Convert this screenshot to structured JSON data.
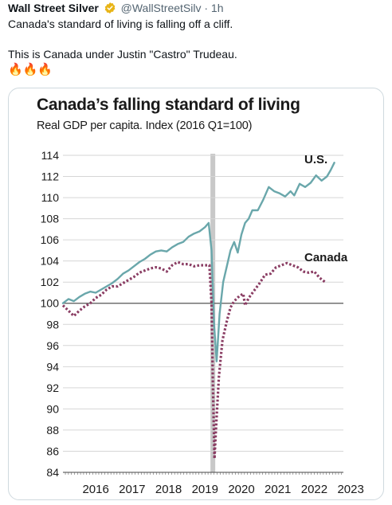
{
  "tweet": {
    "author": "Wall Street Silver",
    "handle": "@WallStreetSilv",
    "separator": "·",
    "time": "1h",
    "line1": "Canada's standard of living is falling off a cliff.",
    "line2": "This is Canada under Justin \"Castro\" Trudeau.",
    "emojis": "🔥🔥🔥"
  },
  "chart_data": {
    "type": "line",
    "title": "Canada’s falling standard of living",
    "subtitle": "Real GDP per capita. Index (2016 Q1=100)",
    "ylim": [
      84,
      114
    ],
    "yticks": [
      "114",
      "112",
      "110",
      "108",
      "106",
      "104",
      "102",
      "100",
      "98",
      "96",
      "94",
      "92",
      "90",
      "88",
      "86",
      "84"
    ],
    "xlim": [
      2015.6,
      2023.3
    ],
    "xticks": [
      "2016",
      "2017",
      "2018",
      "2019",
      "2020",
      "2021",
      "2022",
      "2023"
    ],
    "baseline": 100,
    "shaded_period": [
      2019.65,
      2019.75
    ],
    "colors": {
      "us": "#6aa7ab",
      "canada": "#8a3d63",
      "shade": "#c8c8c8",
      "grid": "#d6d6d6",
      "baseline": "#555555"
    },
    "series": [
      {
        "name": "U.S.",
        "style": "solid",
        "points": [
          [
            2015.6,
            100.0
          ],
          [
            2015.75,
            100.4
          ],
          [
            2015.9,
            100.2
          ],
          [
            2016.05,
            100.6
          ],
          [
            2016.2,
            100.9
          ],
          [
            2016.35,
            101.1
          ],
          [
            2016.5,
            101.0
          ],
          [
            2016.65,
            101.3
          ],
          [
            2016.8,
            101.6
          ],
          [
            2016.95,
            101.9
          ],
          [
            2017.1,
            102.3
          ],
          [
            2017.25,
            102.8
          ],
          [
            2017.4,
            103.1
          ],
          [
            2017.55,
            103.5
          ],
          [
            2017.7,
            103.9
          ],
          [
            2017.85,
            104.2
          ],
          [
            2018.0,
            104.6
          ],
          [
            2018.15,
            104.9
          ],
          [
            2018.3,
            105.0
          ],
          [
            2018.45,
            104.9
          ],
          [
            2018.6,
            105.3
          ],
          [
            2018.75,
            105.6
          ],
          [
            2018.9,
            105.8
          ],
          [
            2019.05,
            106.3
          ],
          [
            2019.2,
            106.6
          ],
          [
            2019.35,
            106.8
          ],
          [
            2019.5,
            107.2
          ],
          [
            2019.6,
            107.6
          ],
          [
            2019.68,
            105.0
          ],
          [
            2019.75,
            98.0
          ],
          [
            2019.82,
            94.5
          ],
          [
            2019.9,
            99.0
          ],
          [
            2020.0,
            102.0
          ],
          [
            2020.1,
            103.5
          ],
          [
            2020.2,
            105.0
          ],
          [
            2020.3,
            105.8
          ],
          [
            2020.4,
            104.8
          ],
          [
            2020.5,
            106.5
          ],
          [
            2020.6,
            107.6
          ],
          [
            2020.7,
            108.0
          ],
          [
            2020.8,
            108.8
          ],
          [
            2020.95,
            108.8
          ],
          [
            2021.1,
            109.8
          ],
          [
            2021.25,
            111.0
          ],
          [
            2021.4,
            110.6
          ],
          [
            2021.55,
            110.4
          ],
          [
            2021.7,
            110.1
          ],
          [
            2021.85,
            110.6
          ],
          [
            2021.95,
            110.2
          ],
          [
            2022.1,
            111.3
          ],
          [
            2022.25,
            111.0
          ],
          [
            2022.4,
            111.4
          ],
          [
            2022.55,
            112.1
          ],
          [
            2022.7,
            111.6
          ],
          [
            2022.85,
            112.0
          ],
          [
            2022.95,
            112.6
          ],
          [
            2023.05,
            113.3
          ]
        ]
      },
      {
        "name": "Canada",
        "style": "dotted",
        "points": [
          [
            2015.6,
            99.8
          ],
          [
            2015.75,
            99.3
          ],
          [
            2015.9,
            98.8
          ],
          [
            2016.05,
            99.3
          ],
          [
            2016.2,
            99.7
          ],
          [
            2016.35,
            100.0
          ],
          [
            2016.5,
            100.5
          ],
          [
            2016.65,
            100.8
          ],
          [
            2016.8,
            101.3
          ],
          [
            2016.95,
            101.6
          ],
          [
            2017.1,
            101.6
          ],
          [
            2017.25,
            101.9
          ],
          [
            2017.4,
            102.2
          ],
          [
            2017.55,
            102.5
          ],
          [
            2017.7,
            102.9
          ],
          [
            2017.85,
            103.1
          ],
          [
            2018.0,
            103.3
          ],
          [
            2018.15,
            103.4
          ],
          [
            2018.3,
            103.3
          ],
          [
            2018.45,
            103.0
          ],
          [
            2018.6,
            103.6
          ],
          [
            2018.75,
            103.9
          ],
          [
            2018.9,
            103.7
          ],
          [
            2019.05,
            103.7
          ],
          [
            2019.2,
            103.5
          ],
          [
            2019.35,
            103.6
          ],
          [
            2019.5,
            103.6
          ],
          [
            2019.62,
            103.6
          ],
          [
            2019.68,
            100.0
          ],
          [
            2019.72,
            92.0
          ],
          [
            2019.76,
            85.3
          ],
          [
            2019.8,
            88.0
          ],
          [
            2019.88,
            93.0
          ],
          [
            2019.98,
            96.5
          ],
          [
            2020.1,
            98.3
          ],
          [
            2020.2,
            99.6
          ],
          [
            2020.3,
            100.2
          ],
          [
            2020.45,
            100.7
          ],
          [
            2020.55,
            100.9
          ],
          [
            2020.6,
            99.8
          ],
          [
            2020.7,
            100.5
          ],
          [
            2020.85,
            101.2
          ],
          [
            2021.0,
            101.9
          ],
          [
            2021.15,
            102.7
          ],
          [
            2021.3,
            102.8
          ],
          [
            2021.45,
            103.4
          ],
          [
            2021.6,
            103.6
          ],
          [
            2021.75,
            103.8
          ],
          [
            2021.9,
            103.6
          ],
          [
            2022.05,
            103.4
          ],
          [
            2022.2,
            103.0
          ],
          [
            2022.35,
            102.9
          ],
          [
            2022.5,
            103.0
          ],
          [
            2022.65,
            102.4
          ],
          [
            2022.8,
            102.0
          ]
        ]
      }
    ],
    "series_labels": [
      "U.S.",
      "Canada"
    ]
  }
}
